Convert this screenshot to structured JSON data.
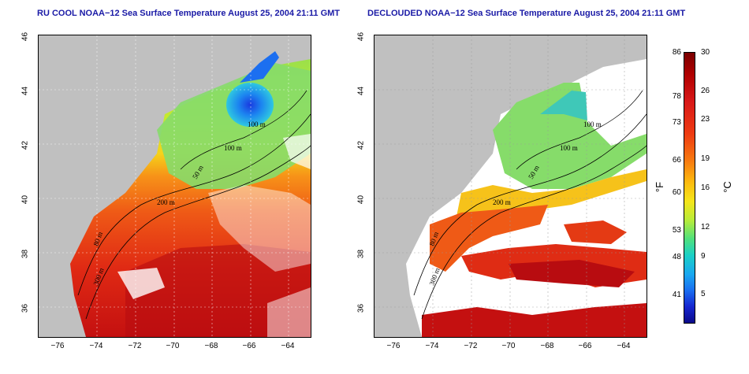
{
  "titles": {
    "left": "RU COOL NOAA−12 Sea Surface Temperature August 25, 2004 21:11 GMT",
    "right": "DECLOUDED NOAA−12 Sea Surface Temperature August 25, 2004 21:11 GMT"
  },
  "y_ticks": [
    "46",
    "44",
    "42",
    "40",
    "38",
    "36"
  ],
  "x_ticks": [
    "−76",
    "−74",
    "−72",
    "−70",
    "−68",
    "−66",
    "−64"
  ],
  "contour_labels": {
    "m100a": "100 m",
    "m100b": "100 m",
    "m50": "50 m",
    "m200": "200 m",
    "m80": "80 m",
    "m300": "300 m"
  },
  "colorbar": {
    "fahrenheit": [
      "86",
      "78",
      "73",
      "66",
      "60",
      "53",
      "48",
      "41"
    ],
    "celsius": [
      "30",
      "26",
      "23",
      "19",
      "16",
      "12",
      "9",
      "5"
    ],
    "unit_f": "°F",
    "unit_c": "°C"
  },
  "colors": {
    "land": "#c0c0c0",
    "cloud": "#ffffff",
    "title": "#1a1aa6"
  }
}
